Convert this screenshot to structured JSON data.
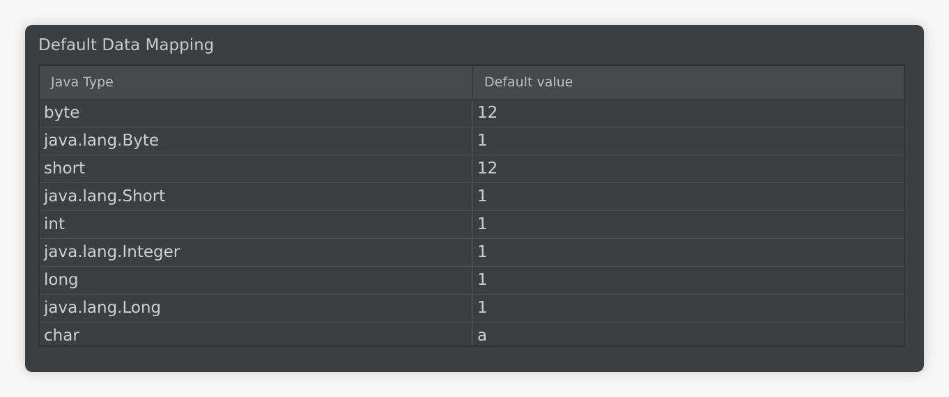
{
  "header": {
    "title": "Default Data Mapping"
  },
  "table": {
    "columns": [
      "Java Type",
      "Default value"
    ],
    "rows": [
      [
        "byte",
        "12"
      ],
      [
        "java.lang.Byte",
        "1"
      ],
      [
        "short",
        "12"
      ],
      [
        "java.lang.Short",
        "1"
      ],
      [
        "int",
        "1"
      ],
      [
        "java.lang.Integer",
        "1"
      ],
      [
        "long",
        "1"
      ],
      [
        "java.lang.Long",
        "1"
      ],
      [
        "char",
        "a"
      ]
    ]
  }
}
